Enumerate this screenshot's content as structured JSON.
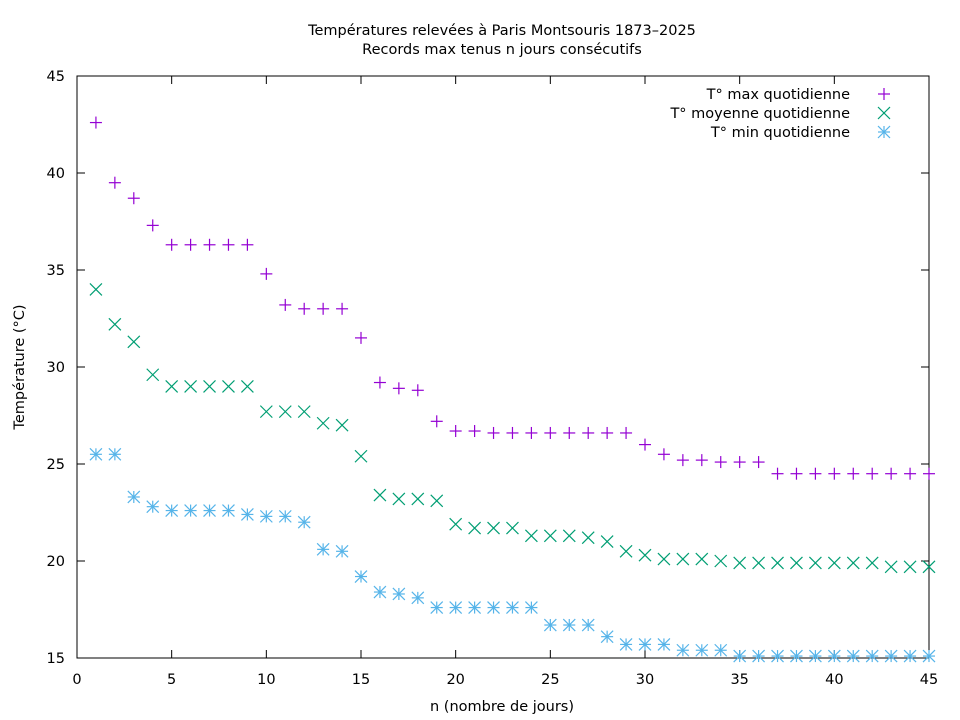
{
  "chart_data": {
    "type": "scatter",
    "title": "Températures relevées à Paris Montsouris 1873–2025",
    "subtitle": "Records max tenus n jours consécutifs",
    "xlabel": "n (nombre de jours)",
    "ylabel": "Température (°C)",
    "xlim": [
      0,
      45
    ],
    "ylim": [
      15,
      45
    ],
    "xticks": [
      0,
      5,
      10,
      15,
      20,
      25,
      30,
      35,
      40,
      45
    ],
    "yticks": [
      15,
      20,
      25,
      30,
      35,
      40,
      45
    ],
    "grid": false,
    "legend_position": "top-right",
    "x": [
      1,
      2,
      3,
      4,
      5,
      6,
      7,
      8,
      9,
      10,
      11,
      12,
      13,
      14,
      15,
      16,
      17,
      18,
      19,
      20,
      21,
      22,
      23,
      24,
      25,
      26,
      27,
      28,
      29,
      30,
      31,
      32,
      33,
      34,
      35,
      36,
      37,
      38,
      39,
      40,
      41,
      42,
      43,
      44,
      45
    ],
    "series": [
      {
        "name": "T° max quotidienne",
        "marker": "plus",
        "color": "#9400d3",
        "values": [
          42.6,
          39.5,
          38.7,
          37.3,
          36.3,
          36.3,
          36.3,
          36.3,
          36.3,
          34.8,
          33.2,
          33.0,
          33.0,
          33.0,
          31.5,
          29.2,
          28.9,
          28.8,
          27.2,
          26.7,
          26.7,
          26.6,
          26.6,
          26.6,
          26.6,
          26.6,
          26.6,
          26.6,
          26.6,
          26.0,
          25.5,
          25.2,
          25.2,
          25.1,
          25.1,
          25.1,
          24.5,
          24.5,
          24.5,
          24.5,
          24.5,
          24.5,
          24.5,
          24.5,
          24.5
        ]
      },
      {
        "name": "T° moyenne quotidienne",
        "marker": "cross",
        "color": "#009e73",
        "values": [
          34.0,
          32.2,
          31.3,
          29.6,
          29.0,
          29.0,
          29.0,
          29.0,
          29.0,
          27.7,
          27.7,
          27.7,
          27.1,
          27.0,
          25.4,
          23.4,
          23.2,
          23.2,
          23.1,
          21.9,
          21.7,
          21.7,
          21.7,
          21.3,
          21.3,
          21.3,
          21.2,
          21.0,
          20.5,
          20.3,
          20.1,
          20.1,
          20.1,
          20.0,
          19.9,
          19.9,
          19.9,
          19.9,
          19.9,
          19.9,
          19.9,
          19.9,
          19.7,
          19.7,
          19.7
        ]
      },
      {
        "name": "T° min quotidienne",
        "marker": "star",
        "color": "#56b4e9",
        "values": [
          25.5,
          25.5,
          23.3,
          22.8,
          22.6,
          22.6,
          22.6,
          22.6,
          22.4,
          22.3,
          22.3,
          22.0,
          20.6,
          20.5,
          19.2,
          18.4,
          18.3,
          18.1,
          17.6,
          17.6,
          17.6,
          17.6,
          17.6,
          17.6,
          16.7,
          16.7,
          16.7,
          16.1,
          15.7,
          15.7,
          15.7,
          15.4,
          15.4,
          15.4,
          15.1,
          15.1,
          15.1,
          15.1,
          15.1,
          15.1,
          15.1,
          15.1,
          15.1,
          15.1,
          15.1
        ]
      }
    ]
  }
}
